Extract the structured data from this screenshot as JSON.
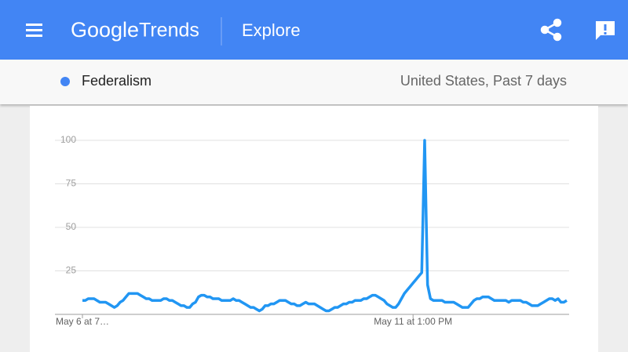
{
  "header": {
    "logo_word1": "Google",
    "logo_word2": "Trends",
    "section": "Explore"
  },
  "chart_data": {
    "type": "line",
    "subtitle": "United States, Past 7 days",
    "categories": [
      "May 6 at 7…",
      null,
      null,
      null,
      null,
      null,
      null,
      null,
      null,
      null,
      null,
      null,
      null,
      null,
      null,
      null,
      null,
      null,
      null,
      null,
      null,
      null,
      null,
      null,
      null,
      null,
      null,
      null,
      null,
      null,
      null,
      null,
      null,
      null,
      null,
      null,
      null,
      null,
      null,
      null,
      null,
      null,
      null,
      null,
      null,
      null,
      null,
      null,
      null,
      null,
      null,
      null,
      null,
      null,
      null,
      null,
      null,
      null,
      null,
      null,
      null,
      null,
      null,
      null,
      null,
      null,
      null,
      null,
      null,
      null,
      null,
      null,
      null,
      null,
      null,
      null,
      null,
      null,
      null,
      null,
      null,
      null,
      null,
      null,
      null,
      null,
      null,
      null,
      null,
      null,
      null,
      null,
      null,
      null,
      null,
      null,
      null,
      null,
      null,
      null,
      null,
      null,
      null,
      null,
      null,
      null,
      null,
      null,
      null,
      null,
      null,
      null,
      null,
      null,
      "May 11 at 1:00 PM",
      null,
      null,
      null,
      null,
      null,
      null,
      null,
      null,
      null,
      null,
      null,
      null,
      null,
      null,
      null,
      null,
      null,
      null,
      null,
      null,
      null,
      null,
      null,
      null,
      null,
      null,
      null,
      null,
      null,
      null,
      null,
      null,
      null,
      null,
      null,
      null,
      null,
      null,
      null,
      null,
      null,
      null,
      null,
      null,
      null,
      null,
      null,
      null,
      null,
      null,
      null,
      null,
      null
    ],
    "series": [
      {
        "name": "Federalism",
        "color": "#2196f3",
        "values": [
          8,
          8,
          9,
          9,
          9,
          8,
          7,
          7,
          7,
          6,
          5,
          4,
          5,
          7,
          8,
          10,
          12,
          12,
          12,
          12,
          11,
          10,
          9,
          9,
          8,
          8,
          8,
          8,
          9,
          9,
          8,
          8,
          7,
          6,
          5,
          5,
          4,
          4,
          6,
          7,
          10,
          11,
          11,
          10,
          10,
          9,
          9,
          9,
          8,
          8,
          8,
          8,
          9,
          8,
          8,
          7,
          6,
          5,
          4,
          4,
          3,
          2,
          3,
          5,
          5,
          6,
          6,
          7,
          8,
          8,
          8,
          7,
          6,
          6,
          5,
          5,
          6,
          7,
          6,
          6,
          6,
          5,
          4,
          3,
          2,
          2,
          3,
          4,
          4,
          5,
          6,
          6,
          7,
          7,
          8,
          8,
          8,
          9,
          9,
          10,
          11,
          11,
          10,
          9,
          8,
          6,
          5,
          4,
          4,
          6,
          9,
          12,
          14,
          16,
          18,
          20,
          22,
          24,
          100,
          17,
          9,
          8,
          8,
          8,
          8,
          7,
          7,
          7,
          7,
          6,
          5,
          4,
          4,
          4,
          6,
          8,
          9,
          9,
          10,
          10,
          10,
          9,
          8,
          8,
          8,
          8,
          8,
          7,
          8,
          8,
          8,
          8,
          7,
          7,
          6,
          5,
          5,
          5,
          6,
          7,
          8,
          9,
          9,
          8,
          9,
          7,
          7,
          8
        ]
      }
    ],
    "ylim": [
      0,
      100
    ],
    "yticks": [
      25,
      50,
      75,
      100
    ],
    "grid": true
  }
}
